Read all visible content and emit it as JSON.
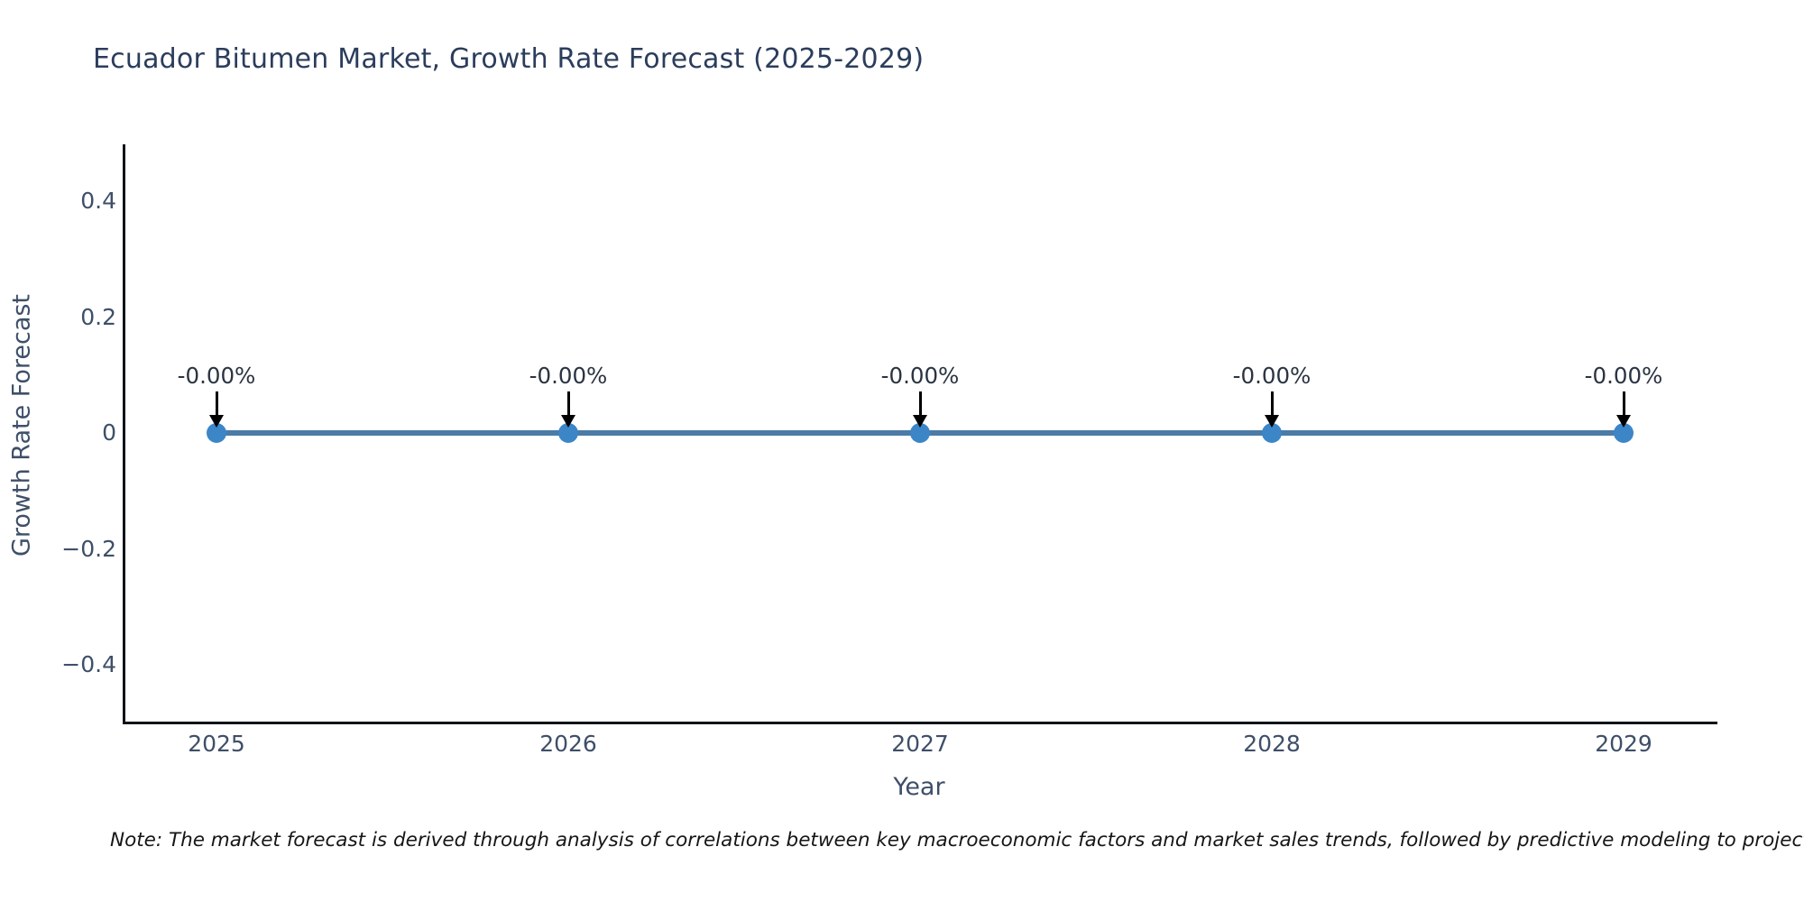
{
  "title": "Ecuador Bitumen Market, Growth Rate Forecast (2025-2029)",
  "note": "Note: The market forecast is derived through analysis of correlations between key macroeconomic factors and market sales trends, followed by predictive modeling to project future sales",
  "chart_data": {
    "type": "line",
    "title": "Ecuador Bitumen Market, Growth Rate Forecast (2025-2029)",
    "xlabel": "Year",
    "ylabel": "Growth Rate Forecast",
    "x": [
      2025,
      2026,
      2027,
      2028,
      2029
    ],
    "series": [
      {
        "name": "Growth Rate Forecast",
        "values": [
          0,
          0,
          0,
          0,
          0
        ]
      }
    ],
    "point_labels": [
      "-0.00%",
      "-0.00%",
      "-0.00%",
      "-0.00%",
      "-0.00%"
    ],
    "xtick_labels": [
      "2025",
      "2026",
      "2027",
      "2028",
      "2029"
    ],
    "yticks": [
      0.4,
      0.2,
      0,
      -0.2,
      -0.4
    ],
    "ytick_labels": [
      "0.4",
      "0.2",
      "0",
      "−0.2",
      "−0.4"
    ],
    "ylim": [
      -0.5,
      0.5
    ],
    "grid": false,
    "legend_position": "none",
    "annotation_arrows": "down",
    "colors": {
      "line": "#4b7ba6",
      "marker": "#3c86c8",
      "arrow": "#000000",
      "title_text": "#2b3d5c",
      "axis_text": "#3e4f68",
      "annotation_text": "#2a3442",
      "spine": "#101418",
      "background": "#ffffff"
    }
  }
}
